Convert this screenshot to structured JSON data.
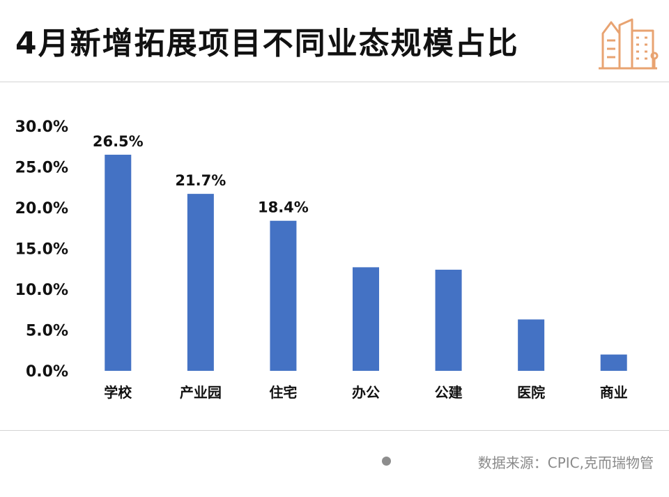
{
  "title": "4月新增拓展项目不同业态规模占比",
  "logo_icon": "buildings-icon",
  "colors": {
    "bar": "#4472c4",
    "text": "#111111",
    "source": "#8a8a8a",
    "logo": "#e8a371"
  },
  "source": "数据来源：CPIC,克而瑞物管",
  "chart_data": {
    "type": "bar",
    "title": "4月新增拓展项目不同业态规模占比",
    "categories": [
      "学校",
      "产业园",
      "住宅",
      "办公",
      "公建",
      "医院",
      "商业"
    ],
    "values": [
      26.5,
      21.7,
      18.4,
      12.7,
      12.4,
      6.3,
      2.0
    ],
    "data_labels": [
      "26.5%",
      "21.7%",
      "18.4%",
      "",
      "",
      "",
      ""
    ],
    "yticks": [
      "0.0%",
      "5.0%",
      "10.0%",
      "15.0%",
      "20.0%",
      "25.0%",
      "30.0%"
    ],
    "ylim": [
      0,
      30
    ],
    "xlabel": "",
    "ylabel": "",
    "grid": false,
    "legend": "none"
  }
}
